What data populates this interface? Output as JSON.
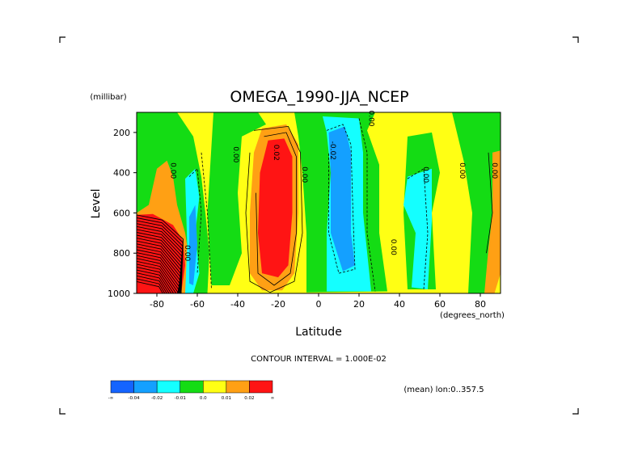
{
  "chart_data": {
    "type": "heatmap",
    "subtype": "filled-contour",
    "title": "OMEGA_1990-JJA_NCEP",
    "xlabel": "Latitude",
    "xunits": "(degrees_north)",
    "ylabel": "Level",
    "yunits": "(millibar)",
    "xlim": [
      -90,
      90
    ],
    "ylim": [
      1000,
      100
    ],
    "xticks": [
      -80,
      -60,
      -40,
      -20,
      0,
      20,
      40,
      60,
      80
    ],
    "xtick_labels": [
      "-80",
      "-60",
      "-40",
      "-20",
      "0",
      "20",
      "40",
      "60",
      "80"
    ],
    "yticks": [
      200,
      400,
      600,
      800,
      1000
    ],
    "ytick_labels": [
      "200",
      "400",
      "600",
      "800",
      "1000"
    ],
    "contour_interval_label": "CONTOUR INTERVAL = 1.000E-02",
    "footer_label": "(mean) lon:0..357.5",
    "colorbar": {
      "colors": [
        "#1464ff",
        "#14a0ff",
        "#14ffff",
        "#14dc14",
        "#ffff14",
        "#ffa014",
        "#ff1414"
      ],
      "labels": [
        "-∞",
        "-0.04",
        "-0.02",
        "-0.01",
        "0.0",
        "0.01",
        "0.02",
        "∞"
      ]
    },
    "contour_labels": [
      {
        "text": "0.00",
        "lat": -73,
        "level": 390
      },
      {
        "text": "0.00",
        "lat": -42,
        "level": 310
      },
      {
        "text": "0.02",
        "lat": -22,
        "level": 300
      },
      {
        "text": "0.00",
        "lat": -8,
        "level": 410
      },
      {
        "text": "-0.02",
        "lat": 6,
        "level": 290
      },
      {
        "text": "0.00",
        "lat": 25,
        "level": 130
      },
      {
        "text": "0.00",
        "lat": 36,
        "level": 770
      },
      {
        "text": "0.00",
        "lat": 52,
        "level": 410
      },
      {
        "text": "0.00",
        "lat": 70,
        "level": 390
      },
      {
        "text": "0.00",
        "lat": 86,
        "level": 390
      },
      {
        "text": "0.00",
        "lat": -66,
        "level": 800
      }
    ],
    "regions": [
      {
        "name": "background",
        "value": 0.005,
        "color": "#ffff14"
      },
      {
        "name": "green-south-polar",
        "value": -0.005,
        "color": "#14dc14",
        "outline": [
          [
            -90,
            100
          ],
          [
            -70,
            100
          ],
          [
            -62,
            220
          ],
          [
            -58,
            420
          ],
          [
            -56,
            600
          ],
          [
            -54,
            800
          ],
          [
            -55,
            1000
          ],
          [
            -90,
            1000
          ]
        ]
      },
      {
        "name": "orange-antarctic-low",
        "value": 0.015,
        "color": "#ffa014",
        "outline": [
          [
            -90,
            600
          ],
          [
            -84,
            560
          ],
          [
            -80,
            380
          ],
          [
            -75,
            340
          ],
          [
            -72,
            420
          ],
          [
            -70,
            560
          ],
          [
            -66,
            700
          ],
          [
            -63,
            900
          ],
          [
            -62,
            1000
          ],
          [
            -90,
            1000
          ]
        ]
      },
      {
        "name": "red-antarctic-steep",
        "value": 0.03,
        "color": "#ff1414",
        "outline": [
          [
            -90,
            1000
          ],
          [
            -90,
            610
          ],
          [
            -82,
            605
          ],
          [
            -72,
            660
          ],
          [
            -67,
            740
          ],
          [
            -66,
            860
          ],
          [
            -68,
            1000
          ]
        ]
      },
      {
        "name": "cyan-south",
        "value": -0.015,
        "color": "#14ffff",
        "outline": [
          [
            -66,
            430
          ],
          [
            -61,
            380
          ],
          [
            -59,
            520
          ],
          [
            -61,
            700
          ],
          [
            -59,
            900
          ],
          [
            -62,
            1000
          ],
          [
            -66,
            1000
          ],
          [
            -65,
            760
          ]
        ]
      },
      {
        "name": "blue-south",
        "value": -0.03,
        "color": "#14a0ff",
        "outline": [
          [
            -64,
            620
          ],
          [
            -61,
            560
          ],
          [
            -60,
            760
          ],
          [
            -62,
            960
          ],
          [
            -64,
            950
          ]
        ]
      },
      {
        "name": "green-subtropic-south",
        "value": -0.005,
        "color": "#14dc14",
        "outline": [
          [
            -52,
            100
          ],
          [
            -30,
            100
          ],
          [
            -26,
            160
          ],
          [
            -38,
            220
          ],
          [
            -40,
            500
          ],
          [
            -38,
            800
          ],
          [
            -44,
            960
          ],
          [
            -53,
            960
          ],
          [
            -55,
            600
          ]
        ]
      },
      {
        "name": "orange-sh-descent",
        "value": 0.015,
        "color": "#ffa014",
        "outline": [
          [
            -28,
            180
          ],
          [
            -16,
            160
          ],
          [
            -10,
            260
          ],
          [
            -10,
            600
          ],
          [
            -12,
            900
          ],
          [
            -18,
            985
          ],
          [
            -28,
            985
          ],
          [
            -34,
            900
          ],
          [
            -34,
            600
          ],
          [
            -32,
            300
          ]
        ]
      },
      {
        "name": "red-sh-descent",
        "value": 0.025,
        "color": "#ff1414",
        "outline": [
          [
            -25,
            240
          ],
          [
            -17,
            230
          ],
          [
            -13,
            320
          ],
          [
            -13,
            600
          ],
          [
            -15,
            860
          ],
          [
            -20,
            920
          ],
          [
            -28,
            900
          ],
          [
            -30,
            700
          ],
          [
            -29,
            400
          ]
        ]
      },
      {
        "name": "green-itcz",
        "value": -0.005,
        "color": "#14dc14",
        "outline": [
          [
            -12,
            100
          ],
          [
            28,
            100
          ],
          [
            24,
            190
          ],
          [
            30,
            360
          ],
          [
            30,
            700
          ],
          [
            34,
            990
          ],
          [
            -6,
            995
          ],
          [
            -6,
            700
          ],
          [
            -8,
            400
          ],
          [
            -10,
            220
          ]
        ]
      },
      {
        "name": "cyan-itcz",
        "value": -0.015,
        "color": "#14ffff",
        "outline": [
          [
            2,
            120
          ],
          [
            20,
            130
          ],
          [
            22,
            300
          ],
          [
            22,
            600
          ],
          [
            26,
            990
          ],
          [
            4,
            990
          ],
          [
            4,
            700
          ],
          [
            6,
            400
          ],
          [
            4,
            200
          ]
        ]
      },
      {
        "name": "blue-itcz",
        "value": -0.03,
        "color": "#14a0ff",
        "outline": [
          [
            5,
            200
          ],
          [
            13,
            170
          ],
          [
            16,
            300
          ],
          [
            16,
            700
          ],
          [
            18,
            860
          ],
          [
            12,
            890
          ],
          [
            6,
            700
          ],
          [
            6,
            400
          ]
        ]
      },
      {
        "name": "green-nh-mid",
        "value": -0.005,
        "color": "#14dc14",
        "outline": [
          [
            44,
            220
          ],
          [
            56,
            200
          ],
          [
            60,
            400
          ],
          [
            56,
            600
          ],
          [
            58,
            980
          ],
          [
            44,
            980
          ],
          [
            42,
            600
          ]
        ]
      },
      {
        "name": "cyan-nh-mid",
        "value": -0.015,
        "color": "#14ffff",
        "outline": [
          [
            44,
            420
          ],
          [
            56,
            380
          ],
          [
            56,
            640
          ],
          [
            54,
            980
          ],
          [
            46,
            970
          ],
          [
            48,
            700
          ],
          [
            42,
            560
          ]
        ]
      },
      {
        "name": "green-north-polar",
        "value": -0.005,
        "color": "#14dc14",
        "outline": [
          [
            66,
            100
          ],
          [
            90,
            100
          ],
          [
            90,
            520
          ],
          [
            84,
            800
          ],
          [
            84,
            1000
          ],
          [
            74,
            1000
          ],
          [
            76,
            600
          ],
          [
            72,
            350
          ]
        ]
      },
      {
        "name": "orange-north-polar",
        "value": 0.015,
        "color": "#ffa014",
        "outline": [
          [
            86,
            300
          ],
          [
            90,
            290
          ],
          [
            90,
            900
          ],
          [
            87,
            1000
          ],
          [
            82,
            1000
          ],
          [
            84,
            780
          ],
          [
            86,
            600
          ]
        ]
      }
    ],
    "dashed_contours": [
      [
        [
          -64,
          420
        ],
        [
          -60,
          380
        ],
        [
          -58,
          600
        ],
        [
          -60,
          900
        ]
      ],
      [
        [
          4,
          190
        ],
        [
          12,
          160
        ],
        [
          16,
          260
        ],
        [
          17,
          600
        ],
        [
          18,
          880
        ],
        [
          10,
          900
        ],
        [
          5,
          700
        ],
        [
          5,
          300
        ]
      ],
      [
        [
          20,
          130
        ],
        [
          24,
          300
        ],
        [
          24,
          700
        ],
        [
          28,
          990
        ]
      ],
      [
        [
          44,
          430
        ],
        [
          52,
          380
        ],
        [
          54,
          700
        ],
        [
          52,
          980
        ]
      ],
      [
        [
          -58,
          300
        ],
        [
          -55,
          600
        ],
        [
          -53,
          980
        ]
      ]
    ],
    "solid_contours": [
      [
        [
          -27,
          220
        ],
        [
          -16,
          200
        ],
        [
          -11,
          320
        ],
        [
          -11,
          700
        ],
        [
          -14,
          900
        ],
        [
          -22,
          960
        ],
        [
          -30,
          900
        ],
        [
          -31,
          500
        ]
      ],
      [
        [
          -32,
          190
        ],
        [
          -15,
          170
        ],
        [
          -9,
          300
        ],
        [
          -8,
          700
        ],
        [
          -12,
          940
        ],
        [
          -24,
          995
        ],
        [
          -34,
          940
        ],
        [
          -36,
          600
        ],
        [
          -34,
          300
        ]
      ],
      [
        [
          84,
          300
        ],
        [
          86,
          600
        ],
        [
          83,
          800
        ]
      ]
    ],
    "steep_contours": {
      "lat_start": -90,
      "lat_end": -67,
      "level_top": 610,
      "level_bottom": 1000,
      "count": 24
    }
  }
}
